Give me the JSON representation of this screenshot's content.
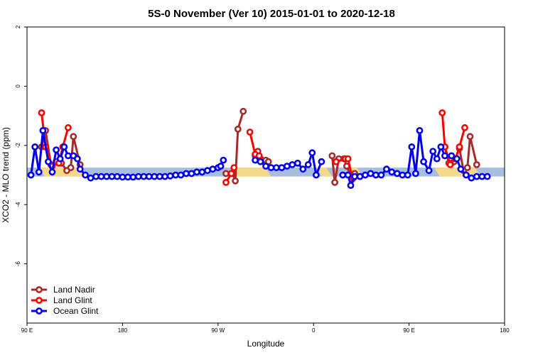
{
  "chart_data": {
    "type": "line",
    "title": "5S-0 November (Ver 10)   2015-01-01 to 2020-12-18",
    "xlabel": "Longitude",
    "ylabel": "XCO2 - MLO trend (ppm)",
    "xlim": [
      90,
      450
    ],
    "ylim": [
      -8,
      2
    ],
    "x_ticks": [
      {
        "value": 90,
        "label": "90 E"
      },
      {
        "value": 162,
        "label": "180"
      },
      {
        "value": 234,
        "label": "90 W"
      },
      {
        "value": 306,
        "label": "0"
      },
      {
        "value": 378,
        "label": "90 E"
      },
      {
        "value": 450,
        "label": "180"
      }
    ],
    "y_ticks": [
      {
        "value": 2,
        "label": "2"
      },
      {
        "value": 0,
        "label": "0"
      },
      {
        "value": -2,
        "label": "-2"
      },
      {
        "value": -4,
        "label": "-4"
      },
      {
        "value": -6,
        "label": "-6"
      }
    ],
    "background_band": {
      "y_range": [
        -3.05,
        -2.75
      ],
      "color": "#a9bedf"
    },
    "land_bands": [
      {
        "x_range": [
          99,
          134
        ],
        "color": "#f4d98a"
      },
      {
        "x_range": [
          244,
          274
        ],
        "color": "#f4d98a"
      },
      {
        "x_range": [
          308,
          320
        ],
        "color": "#f4d98a"
      },
      {
        "x_range": [
          331,
          343
        ],
        "color": "#f4d98a"
      },
      {
        "x_range": [
          397,
          432
        ],
        "color": "#f4d98a"
      }
    ],
    "legend": {
      "position": "bottom-left"
    },
    "series": [
      {
        "name": "Land Nadir",
        "color": "#a52a2a",
        "segments": [
          [
            [
              101,
              -2.05
            ],
            [
              104,
              -1.5
            ],
            [
              108,
              -2.65
            ],
            [
              112,
              -2.55
            ],
            [
              116,
              -2.6
            ],
            [
              120,
              -2.85
            ],
            [
              123,
              -2.75
            ],
            [
              125,
              -1.7
            ],
            [
              130,
              -2.65
            ]
          ],
          [
            [
              240,
              -2.95
            ],
            [
              245,
              -2.95
            ],
            [
              247,
              -3.2
            ],
            [
              249,
              -1.45
            ],
            [
              253,
              -0.85
            ]
          ],
          [
            [
              262,
              -2.35
            ],
            [
              264,
              -2.2
            ],
            [
              266,
              -2.45
            ],
            [
              270,
              -2.5
            ],
            [
              272,
              -2.55
            ]
          ],
          [
            [
              320,
              -2.35
            ],
            [
              322,
              -3.25
            ],
            [
              325,
              -2.45
            ],
            [
              329,
              -2.45
            ],
            [
              331,
              -2.7
            ],
            [
              335,
              -3.15
            ],
            [
              337,
              -2.95
            ]
          ],
          [
            [
              405,
              -2.05
            ],
            [
              408,
              -2.6
            ],
            [
              410,
              -2.6
            ],
            [
              412,
              -2.55
            ],
            [
              416,
              -2.1
            ],
            [
              419,
              -2.85
            ],
            [
              422,
              -2.75
            ],
            [
              424,
              -1.7
            ],
            [
              429,
              -2.65
            ]
          ]
        ]
      },
      {
        "name": "Land Glint",
        "color": "#ff0000",
        "segments": [
          [
            [
              101,
              -0.9
            ],
            [
              104,
              -2.05
            ],
            [
              109,
              -2.7
            ],
            [
              114,
              -2.6
            ],
            [
              117,
              -2.05
            ],
            [
              121,
              -1.4
            ]
          ],
          [
            [
              240,
              -3.25
            ],
            [
              244,
              -2.95
            ],
            [
              246,
              -2.75
            ]
          ],
          [
            [
              258,
              -1.55
            ],
            [
              262,
              -2.3
            ],
            [
              265,
              -2.35
            ]
          ],
          [
            [
              323,
              -2.55
            ],
            [
              330,
              -2.45
            ],
            [
              332,
              -2.45
            ],
            [
              335,
              -3.05
            ],
            [
              336,
              -3.1
            ]
          ],
          [
            [
              403,
              -0.9
            ],
            [
              405,
              -2.05
            ],
            [
              409,
              -2.65
            ],
            [
              413,
              -2.45
            ],
            [
              416,
              -2.05
            ],
            [
              420,
              -1.4
            ]
          ]
        ]
      },
      {
        "name": "Ocean Glint",
        "color": "#0000ee",
        "segments": [
          [
            [
              93,
              -3.0
            ],
            [
              96,
              -2.05
            ],
            [
              99,
              -2.9
            ],
            [
              102,
              -1.5
            ],
            [
              106,
              -2.55
            ],
            [
              109,
              -2.9
            ],
            [
              112,
              -2.15
            ],
            [
              115,
              -2.45
            ],
            [
              118,
              -2.05
            ],
            [
              121,
              -2.35
            ],
            [
              125,
              -2.35
            ],
            [
              128,
              -2.45
            ],
            [
              130,
              -2.8
            ],
            [
              134,
              -3.0
            ],
            [
              138,
              -3.1
            ],
            [
              142,
              -3.05
            ],
            [
              146,
              -3.05
            ],
            [
              150,
              -3.05
            ],
            [
              154,
              -3.05
            ],
            [
              158,
              -3.05
            ],
            [
              162,
              -3.07
            ],
            [
              166,
              -3.07
            ],
            [
              170,
              -3.07
            ],
            [
              174,
              -3.05
            ],
            [
              178,
              -3.05
            ],
            [
              182,
              -3.05
            ],
            [
              186,
              -3.05
            ],
            [
              190,
              -3.05
            ],
            [
              194,
              -3.05
            ],
            [
              198,
              -3.03
            ],
            [
              202,
              -3.0
            ],
            [
              206,
              -3.0
            ],
            [
              210,
              -2.95
            ],
            [
              214,
              -2.95
            ],
            [
              218,
              -2.9
            ],
            [
              222,
              -2.9
            ],
            [
              226,
              -2.85
            ],
            [
              230,
              -2.8
            ],
            [
              234,
              -2.75
            ],
            [
              236,
              -2.7
            ],
            [
              238,
              -2.5
            ]
          ],
          [
            [
              262,
              -2.5
            ],
            [
              266,
              -2.55
            ],
            [
              270,
              -2.7
            ],
            [
              274,
              -2.75
            ],
            [
              278,
              -2.75
            ],
            [
              282,
              -2.75
            ],
            [
              286,
              -2.7
            ],
            [
              290,
              -2.65
            ],
            [
              294,
              -2.6
            ],
            [
              298,
              -2.8
            ],
            [
              302,
              -2.65
            ],
            [
              305,
              -2.25
            ],
            [
              308,
              -3.0
            ],
            [
              312,
              -2.55
            ]
          ],
          [
            [
              328,
              -3.0
            ],
            [
              332,
              -3.0
            ],
            [
              334,
              -3.35
            ],
            [
              337,
              -3.05
            ],
            [
              341,
              -3.05
            ],
            [
              345,
              -3.0
            ],
            [
              349,
              -2.95
            ],
            [
              353,
              -3.0
            ],
            [
              357,
              -3.0
            ],
            [
              361,
              -2.8
            ],
            [
              365,
              -2.9
            ],
            [
              369,
              -2.95
            ],
            [
              373,
              -3.0
            ],
            [
              377,
              -3.0
            ],
            [
              380,
              -2.05
            ],
            [
              383,
              -2.95
            ],
            [
              386,
              -1.5
            ],
            [
              389,
              -2.55
            ],
            [
              393,
              -2.85
            ],
            [
              396,
              -2.2
            ],
            [
              399,
              -2.45
            ],
            [
              402,
              -2.05
            ],
            [
              405,
              -2.35
            ],
            [
              410,
              -2.35
            ],
            [
              414,
              -2.45
            ],
            [
              417,
              -2.8
            ],
            [
              421,
              -3.0
            ],
            [
              425,
              -3.1
            ],
            [
              429,
              -3.05
            ],
            [
              433,
              -3.05
            ],
            [
              437,
              -3.05
            ]
          ]
        ]
      }
    ]
  }
}
